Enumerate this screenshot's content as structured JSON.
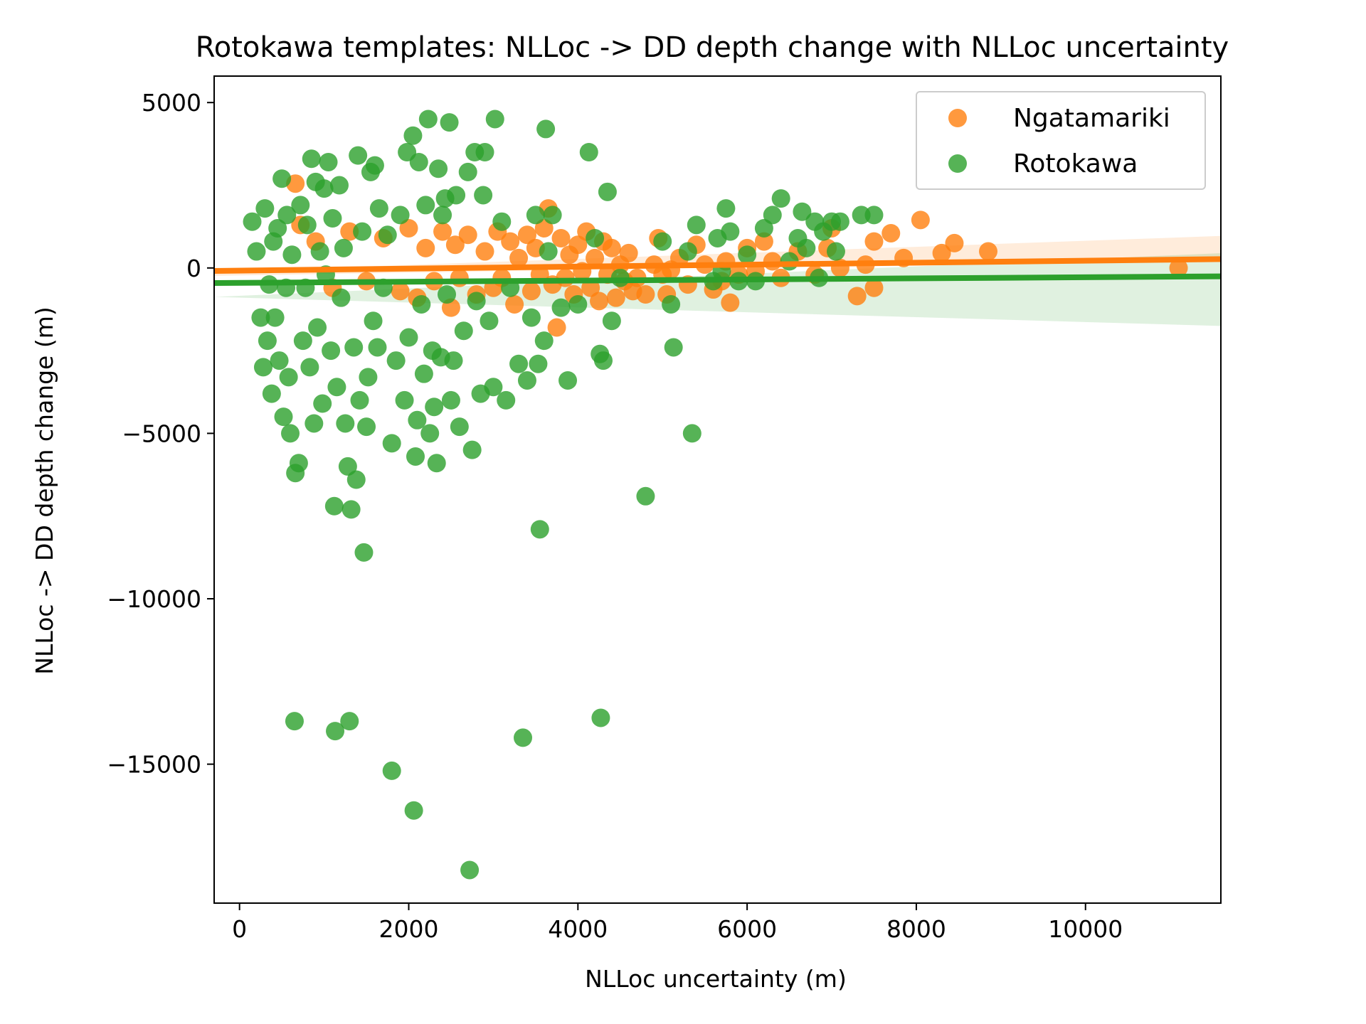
{
  "chart_data": {
    "type": "scatter",
    "title": "Rotokawa templates: NLLoc -> DD depth change with NLLoc uncertainty",
    "xlabel": "NLLoc uncertainty (m)",
    "ylabel": "NLLoc -> DD depth change (m)",
    "xlim": [
      -300,
      11600
    ],
    "ylim": [
      -19200,
      5800
    ],
    "xticks": [
      0,
      2000,
      4000,
      6000,
      8000,
      10000
    ],
    "yticks": [
      5000,
      0,
      -5000,
      -10000,
      -15000
    ],
    "xtick_labels": [
      "0",
      "2000",
      "4000",
      "6000",
      "8000",
      "10000"
    ],
    "ytick_labels": [
      "5000",
      "0",
      "−5000",
      "−10000",
      "−15000"
    ],
    "grid": false,
    "legend_position": "top-right",
    "series": [
      {
        "name": "Ngatamariki",
        "color": "#ff7f0e",
        "marker_alpha": 0.8,
        "regression": {
          "slope": 0.03,
          "intercept": -80,
          "ci_start": [
            -150,
            -30
          ],
          "ci_end": [
            0,
            700
          ]
        },
        "points": [
          [
            660,
            2550
          ],
          [
            720,
            1300
          ],
          [
            900,
            800
          ],
          [
            1100,
            -600
          ],
          [
            1300,
            1100
          ],
          [
            1500,
            -400
          ],
          [
            1700,
            900
          ],
          [
            1900,
            -700
          ],
          [
            2000,
            1200
          ],
          [
            2100,
            -900
          ],
          [
            2200,
            600
          ],
          [
            2300,
            -400
          ],
          [
            2400,
            1100
          ],
          [
            2500,
            -1200
          ],
          [
            2550,
            700
          ],
          [
            2600,
            -300
          ],
          [
            2700,
            1000
          ],
          [
            2800,
            -800
          ],
          [
            2900,
            500
          ],
          [
            3000,
            -600
          ],
          [
            3050,
            1100
          ],
          [
            3100,
            -300
          ],
          [
            3200,
            800
          ],
          [
            3250,
            -1100
          ],
          [
            3300,
            300
          ],
          [
            3400,
            1000
          ],
          [
            3450,
            -700
          ],
          [
            3500,
            600
          ],
          [
            3550,
            -200
          ],
          [
            3600,
            1200
          ],
          [
            3650,
            1800
          ],
          [
            3700,
            -500
          ],
          [
            3750,
            -1800
          ],
          [
            3800,
            900
          ],
          [
            3850,
            -300
          ],
          [
            3900,
            400
          ],
          [
            3950,
            -800
          ],
          [
            4000,
            700
          ],
          [
            4050,
            -100
          ],
          [
            4100,
            1100
          ],
          [
            4150,
            -600
          ],
          [
            4200,
            300
          ],
          [
            4250,
            -1000
          ],
          [
            4300,
            800
          ],
          [
            4350,
            -200
          ],
          [
            4400,
            600
          ],
          [
            4450,
            -900
          ],
          [
            4500,
            100
          ],
          [
            4550,
            -400
          ],
          [
            4600,
            450
          ],
          [
            4650,
            -700
          ],
          [
            4700,
            -300
          ],
          [
            4800,
            -800
          ],
          [
            4900,
            100
          ],
          [
            4950,
            900
          ],
          [
            5000,
            -200
          ],
          [
            5050,
            -800
          ],
          [
            5100,
            -50
          ],
          [
            5200,
            300
          ],
          [
            5300,
            -500
          ],
          [
            5400,
            700
          ],
          [
            5500,
            100
          ],
          [
            5600,
            -650
          ],
          [
            5700,
            -400
          ],
          [
            5750,
            200
          ],
          [
            5800,
            -1050
          ],
          [
            5900,
            -200
          ],
          [
            6000,
            600
          ],
          [
            6100,
            -100
          ],
          [
            6200,
            800
          ],
          [
            6300,
            200
          ],
          [
            6400,
            -300
          ],
          [
            6600,
            500
          ],
          [
            6800,
            -200
          ],
          [
            6950,
            600
          ],
          [
            7000,
            1200
          ],
          [
            7100,
            0
          ],
          [
            7300,
            -850
          ],
          [
            7400,
            100
          ],
          [
            7500,
            800
          ],
          [
            7500,
            -600
          ],
          [
            7700,
            1050
          ],
          [
            7850,
            300
          ],
          [
            8050,
            1450
          ],
          [
            8300,
            450
          ],
          [
            8450,
            750
          ],
          [
            8850,
            500
          ],
          [
            11100,
            0
          ]
        ]
      },
      {
        "name": "Rotokawa",
        "color": "#2ca02c",
        "marker_alpha": 0.8,
        "regression": {
          "slope": 0.017,
          "intercept": -450,
          "ci_start": [
            -420,
            -420
          ],
          "ci_end": [
            -1500,
            700
          ]
        },
        "points": [
          [
            150,
            1400
          ],
          [
            200,
            500
          ],
          [
            250,
            -1500
          ],
          [
            280,
            -3000
          ],
          [
            300,
            1800
          ],
          [
            330,
            -2200
          ],
          [
            350,
            -500
          ],
          [
            380,
            -3800
          ],
          [
            400,
            800
          ],
          [
            420,
            -1500
          ],
          [
            450,
            1200
          ],
          [
            470,
            -2800
          ],
          [
            500,
            2700
          ],
          [
            520,
            -4500
          ],
          [
            550,
            -600
          ],
          [
            560,
            1600
          ],
          [
            580,
            -3300
          ],
          [
            600,
            -5000
          ],
          [
            620,
            400
          ],
          [
            650,
            -13700
          ],
          [
            660,
            -6200
          ],
          [
            700,
            -5900
          ],
          [
            720,
            1900
          ],
          [
            750,
            -2200
          ],
          [
            780,
            -600
          ],
          [
            800,
            1300
          ],
          [
            830,
            -3000
          ],
          [
            850,
            3300
          ],
          [
            880,
            -4700
          ],
          [
            900,
            2600
          ],
          [
            920,
            -1800
          ],
          [
            950,
            500
          ],
          [
            980,
            -4100
          ],
          [
            1000,
            2400
          ],
          [
            1020,
            -200
          ],
          [
            1050,
            3200
          ],
          [
            1080,
            -2500
          ],
          [
            1100,
            1500
          ],
          [
            1120,
            -7200
          ],
          [
            1130,
            -14000
          ],
          [
            1150,
            -3600
          ],
          [
            1180,
            2500
          ],
          [
            1200,
            -900
          ],
          [
            1230,
            600
          ],
          [
            1250,
            -4700
          ],
          [
            1280,
            -6000
          ],
          [
            1300,
            -13700
          ],
          [
            1320,
            -7300
          ],
          [
            1350,
            -2400
          ],
          [
            1380,
            -6400
          ],
          [
            1400,
            3400
          ],
          [
            1420,
            -4000
          ],
          [
            1450,
            1100
          ],
          [
            1470,
            -8600
          ],
          [
            1500,
            -4800
          ],
          [
            1520,
            -3300
          ],
          [
            1550,
            2900
          ],
          [
            1580,
            -1600
          ],
          [
            1600,
            3100
          ],
          [
            1630,
            -2400
          ],
          [
            1650,
            1800
          ],
          [
            1700,
            -600
          ],
          [
            1750,
            1000
          ],
          [
            1800,
            -15200
          ],
          [
            1800,
            -5300
          ],
          [
            1850,
            -2800
          ],
          [
            1900,
            1600
          ],
          [
            1950,
            -4000
          ],
          [
            1980,
            3500
          ],
          [
            2000,
            -2100
          ],
          [
            2050,
            4000
          ],
          [
            2060,
            -16400
          ],
          [
            2080,
            -5700
          ],
          [
            2100,
            -4600
          ],
          [
            2120,
            3200
          ],
          [
            2150,
            -1100
          ],
          [
            2180,
            -3200
          ],
          [
            2200,
            1900
          ],
          [
            2230,
            4500
          ],
          [
            2250,
            -5000
          ],
          [
            2280,
            -2500
          ],
          [
            2300,
            -4200
          ],
          [
            2330,
            -5900
          ],
          [
            2350,
            3000
          ],
          [
            2380,
            -2700
          ],
          [
            2400,
            1600
          ],
          [
            2430,
            2100
          ],
          [
            2450,
            -800
          ],
          [
            2480,
            4400
          ],
          [
            2500,
            -4000
          ],
          [
            2530,
            -2800
          ],
          [
            2560,
            2200
          ],
          [
            2600,
            -4800
          ],
          [
            2650,
            -1900
          ],
          [
            2700,
            2900
          ],
          [
            2720,
            -18200
          ],
          [
            2750,
            -5500
          ],
          [
            2780,
            3500
          ],
          [
            2800,
            -1000
          ],
          [
            2850,
            -3800
          ],
          [
            2880,
            2200
          ],
          [
            2900,
            3500
          ],
          [
            2950,
            -1600
          ],
          [
            3000,
            -3600
          ],
          [
            3020,
            4500
          ],
          [
            3100,
            1400
          ],
          [
            3150,
            -4000
          ],
          [
            3200,
            -600
          ],
          [
            3300,
            -2900
          ],
          [
            3350,
            -14200
          ],
          [
            3400,
            -3400
          ],
          [
            3450,
            -1500
          ],
          [
            3500,
            1600
          ],
          [
            3530,
            -2900
          ],
          [
            3550,
            -7900
          ],
          [
            3600,
            -2200
          ],
          [
            3620,
            4200
          ],
          [
            3650,
            500
          ],
          [
            3700,
            1600
          ],
          [
            3800,
            -1200
          ],
          [
            3880,
            -3400
          ],
          [
            4000,
            -1100
          ],
          [
            4130,
            3500
          ],
          [
            4200,
            900
          ],
          [
            4260,
            -2600
          ],
          [
            4270,
            -13600
          ],
          [
            4300,
            -2800
          ],
          [
            4350,
            2300
          ],
          [
            4400,
            -1600
          ],
          [
            4500,
            -300
          ],
          [
            4800,
            -6900
          ],
          [
            5000,
            800
          ],
          [
            5100,
            -1100
          ],
          [
            5130,
            -2400
          ],
          [
            5300,
            500
          ],
          [
            5350,
            -5000
          ],
          [
            5400,
            1300
          ],
          [
            5600,
            -400
          ],
          [
            5650,
            900
          ],
          [
            5700,
            -100
          ],
          [
            5750,
            1800
          ],
          [
            5800,
            1100
          ],
          [
            5900,
            -400
          ],
          [
            6000,
            400
          ],
          [
            6100,
            -400
          ],
          [
            6200,
            1200
          ],
          [
            6300,
            1600
          ],
          [
            6400,
            2100
          ],
          [
            6500,
            200
          ],
          [
            6600,
            900
          ],
          [
            6650,
            1700
          ],
          [
            6700,
            600
          ],
          [
            6800,
            1400
          ],
          [
            6850,
            -300
          ],
          [
            6900,
            1100
          ],
          [
            7000,
            1400
          ],
          [
            7050,
            500
          ],
          [
            7100,
            1400
          ],
          [
            7350,
            1600
          ],
          [
            7500,
            1600
          ]
        ]
      }
    ]
  }
}
